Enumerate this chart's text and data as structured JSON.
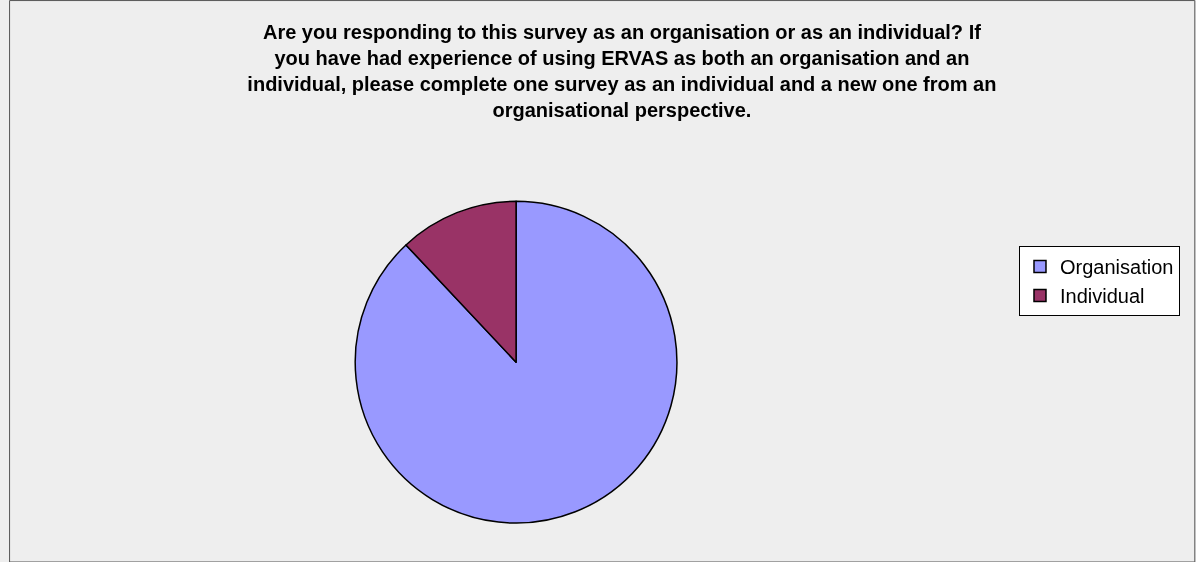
{
  "chart_data": {
    "type": "pie",
    "title": "Are you responding to this survey as an organisation or as an individual? If you have had experience of using ERVAS as both an organisation and an individual, please complete one survey as an individual and a new one from an organisational perspective.",
    "categories": [
      "Organisation",
      "Individual"
    ],
    "values": [
      88,
      12
    ],
    "colors": [
      "#9999ff",
      "#993366"
    ],
    "legend": "right"
  }
}
